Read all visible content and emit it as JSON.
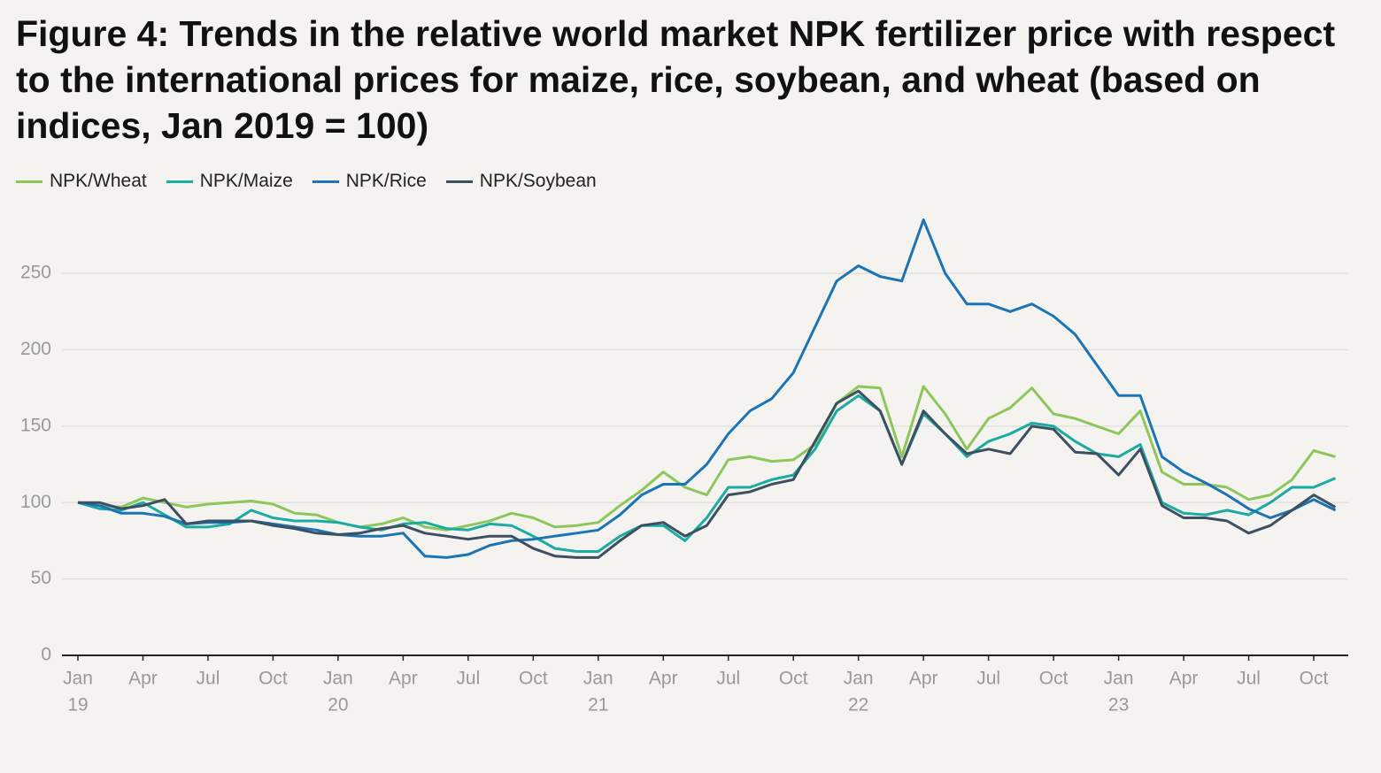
{
  "chart_data": {
    "type": "line",
    "title": "Figure 4: Trends in the relative world market NPK fertilizer price with respect to the international prices for maize, rice, soybean, and wheat (based on indices, Jan 2019 = 100)",
    "x": [
      "2019-01",
      "2019-02",
      "2019-03",
      "2019-04",
      "2019-05",
      "2019-06",
      "2019-07",
      "2019-08",
      "2019-09",
      "2019-10",
      "2019-11",
      "2019-12",
      "2020-01",
      "2020-02",
      "2020-03",
      "2020-04",
      "2020-05",
      "2020-06",
      "2020-07",
      "2020-08",
      "2020-09",
      "2020-10",
      "2020-11",
      "2020-12",
      "2021-01",
      "2021-02",
      "2021-03",
      "2021-04",
      "2021-05",
      "2021-06",
      "2021-07",
      "2021-08",
      "2021-09",
      "2021-10",
      "2021-11",
      "2021-12",
      "2022-01",
      "2022-02",
      "2022-03",
      "2022-04",
      "2022-05",
      "2022-06",
      "2022-07",
      "2022-08",
      "2022-09",
      "2022-10",
      "2022-11",
      "2022-12",
      "2023-01",
      "2023-02",
      "2023-03",
      "2023-04",
      "2023-05",
      "2023-06",
      "2023-07",
      "2023-08",
      "2023-09",
      "2023-10",
      "2023-11"
    ],
    "series": [
      {
        "name": "NPK/Wheat",
        "color": "#8dc65b",
        "values": [
          100,
          98,
          97,
          103,
          100,
          97,
          99,
          100,
          101,
          99,
          93,
          92,
          87,
          84,
          86,
          90,
          84,
          82,
          85,
          88,
          93,
          90,
          84,
          85,
          87,
          98,
          108,
          120,
          110,
          105,
          128,
          130,
          127,
          128,
          138,
          165,
          176,
          175,
          130,
          176,
          158,
          135,
          155,
          162,
          175,
          158,
          155,
          150,
          145,
          160,
          120,
          112,
          112,
          110,
          102,
          105,
          115,
          134,
          130
        ]
      },
      {
        "name": "NPK/Maize",
        "color": "#1aaba3",
        "values": [
          100,
          96,
          95,
          100,
          92,
          84,
          84,
          86,
          95,
          90,
          88,
          88,
          87,
          84,
          82,
          86,
          87,
          83,
          82,
          86,
          85,
          78,
          70,
          68,
          68,
          78,
          85,
          85,
          75,
          90,
          110,
          110,
          115,
          118,
          135,
          160,
          170,
          160,
          125,
          158,
          145,
          130,
          140,
          145,
          152,
          150,
          140,
          132,
          130,
          138,
          100,
          93,
          92,
          95,
          92,
          100,
          110,
          110,
          116
        ]
      },
      {
        "name": "NPK/Rice",
        "color": "#1b75b5",
        "values": [
          100,
          98,
          93,
          93,
          91,
          86,
          87,
          87,
          88,
          86,
          84,
          82,
          79,
          78,
          78,
          80,
          65,
          64,
          66,
          72,
          75,
          76,
          78,
          80,
          82,
          92,
          105,
          112,
          112,
          125,
          145,
          160,
          168,
          185,
          215,
          245,
          255,
          248,
          245,
          285,
          250,
          230,
          230,
          225,
          230,
          222,
          210,
          190,
          170,
          170,
          130,
          120,
          113,
          105,
          96,
          90,
          95,
          102,
          95
        ]
      },
      {
        "name": "NPK/Soybean",
        "color": "#3d4f61",
        "values": [
          100,
          100,
          96,
          98,
          102,
          86,
          88,
          88,
          88,
          85,
          83,
          80,
          79,
          80,
          83,
          85,
          80,
          78,
          76,
          78,
          78,
          70,
          65,
          64,
          64,
          75,
          85,
          87,
          78,
          85,
          105,
          107,
          112,
          115,
          140,
          165,
          173,
          160,
          125,
          160,
          145,
          132,
          135,
          132,
          150,
          148,
          133,
          132,
          118,
          135,
          98,
          90,
          90,
          88,
          80,
          85,
          95,
          105,
          97
        ]
      }
    ],
    "xlim": [
      "2019-01",
      "2023-12"
    ],
    "xticks": [
      {
        "value": "2019-01",
        "label": "Jan",
        "year": "19"
      },
      {
        "value": "2019-04",
        "label": "Apr"
      },
      {
        "value": "2019-07",
        "label": "Jul"
      },
      {
        "value": "2019-10",
        "label": "Oct"
      },
      {
        "value": "2020-01",
        "label": "Jan",
        "year": "20"
      },
      {
        "value": "2020-04",
        "label": "Apr"
      },
      {
        "value": "2020-07",
        "label": "Jul"
      },
      {
        "value": "2020-10",
        "label": "Oct"
      },
      {
        "value": "2021-01",
        "label": "Jan",
        "year": "21"
      },
      {
        "value": "2021-04",
        "label": "Apr"
      },
      {
        "value": "2021-07",
        "label": "Jul"
      },
      {
        "value": "2021-10",
        "label": "Oct"
      },
      {
        "value": "2022-01",
        "label": "Jan",
        "year": "22"
      },
      {
        "value": "2022-04",
        "label": "Apr"
      },
      {
        "value": "2022-07",
        "label": "Jul"
      },
      {
        "value": "2022-10",
        "label": "Oct"
      },
      {
        "value": "2023-01",
        "label": "Jan",
        "year": "23"
      },
      {
        "value": "2023-04",
        "label": "Apr"
      },
      {
        "value": "2023-07",
        "label": "Jul"
      },
      {
        "value": "2023-10",
        "label": "Oct"
      }
    ],
    "ylim": [
      0,
      290
    ],
    "yticks": [
      0,
      50,
      100,
      150,
      200,
      250
    ],
    "grid": true,
    "legend": "top-left"
  }
}
